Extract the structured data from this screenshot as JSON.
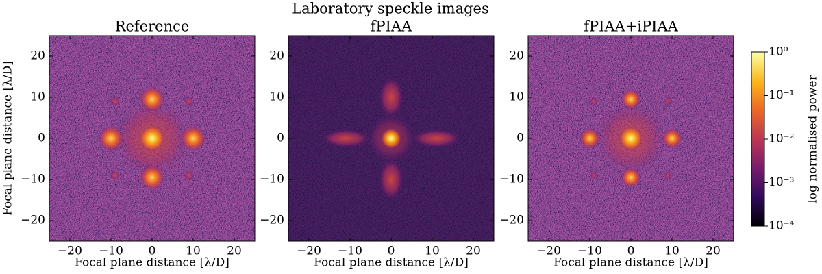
{
  "title": "Laboratory speckle images",
  "chart_data": [
    {
      "type": "image",
      "title": "Reference",
      "xlabel": "Focal plane distance [λ/D]",
      "ylabel": "Focal plane distance [λ/D]",
      "xlim": [
        -25,
        25
      ],
      "ylim": [
        -25,
        25
      ],
      "xticks": [
        {
          "value": -20,
          "label": "−20"
        },
        {
          "value": -10,
          "label": "−10"
        },
        0,
        10,
        20
      ],
      "yticks": [
        {
          "value": -20,
          "label": "−20"
        },
        {
          "value": -10,
          "label": "−10"
        },
        0,
        10,
        20
      ]
    },
    {
      "type": "image",
      "title": "fPIAA",
      "xlabel": "Focal plane distance [λ/D]",
      "xlim": [
        -25,
        25
      ],
      "ylim": [
        -25,
        25
      ],
      "xticks": [
        {
          "value": -20,
          "label": "−20"
        },
        {
          "value": -10,
          "label": "−10"
        },
        0,
        10,
        20
      ],
      "yticks": [
        {
          "value": -20,
          "label": "−20"
        },
        {
          "value": -10,
          "label": "−10"
        },
        0,
        10,
        20
      ]
    },
    {
      "type": "image",
      "title": "fPIAA+iPIAA",
      "xlabel": "Focal plane distance [λ/D]",
      "xlim": [
        -25,
        25
      ],
      "ylim": [
        -25,
        25
      ],
      "xticks": [
        {
          "value": -20,
          "label": "−20"
        },
        {
          "value": -10,
          "label": "−10"
        },
        0,
        10,
        20
      ],
      "yticks": [
        {
          "value": -20,
          "label": "−20"
        },
        {
          "value": -10,
          "label": "−10"
        },
        0,
        10,
        20
      ]
    }
  ],
  "colorbar": {
    "label": "log normalised power",
    "log": true,
    "ylim": [
      0.0001,
      1
    ],
    "yticks": [
      {
        "value": 0.0001,
        "label": "10⁻⁴"
      },
      {
        "value": 0.001,
        "label": "10⁻³"
      },
      {
        "value": 0.01,
        "label": "10⁻²"
      },
      {
        "value": 0.1,
        "label": "10⁻¹"
      },
      {
        "value": 1,
        "label": "10⁰"
      }
    ]
  }
}
